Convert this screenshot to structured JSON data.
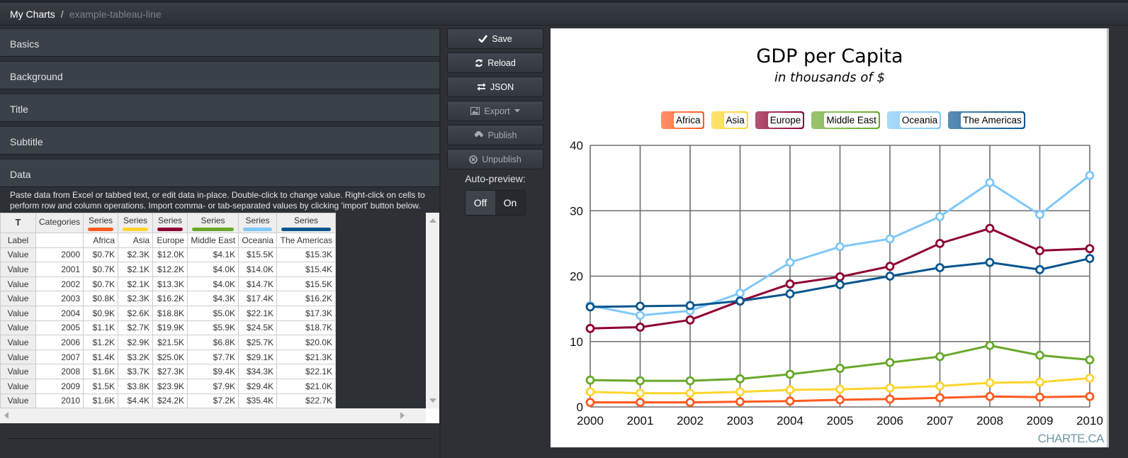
{
  "breadcrumb": {
    "home": "My Charts",
    "separator": "/",
    "current": "example-tableau-line"
  },
  "panels": [
    "Basics",
    "Background",
    "Title",
    "Subtitle",
    "Data"
  ],
  "data_panel": {
    "help": "Paste data from Excel or tabbed text, or edit data in-place. Double-click to change value. Right-click on cells to perform row and column operations. Import comma- or tab-separated values by clicking 'import' button below.",
    "corner": "T",
    "categories_header": "Categories",
    "series_header": "Series",
    "label_row": "Label",
    "value_row": "Value",
    "series": [
      {
        "name": "Africa",
        "color": "#ff5a1f"
      },
      {
        "name": "Asia",
        "color": "#ffd52e"
      },
      {
        "name": "Europe",
        "color": "#8e0033"
      },
      {
        "name": "Middle East",
        "color": "#67a829"
      },
      {
        "name": "Oceania",
        "color": "#7fc8f8"
      },
      {
        "name": "The Americas",
        "color": "#07558f"
      }
    ],
    "rows": [
      [
        "2000",
        "$0.7K",
        "$2.3K",
        "$12.0K",
        "$4.1K",
        "$15.5K",
        "$15.3K"
      ],
      [
        "2001",
        "$0.7K",
        "$2.1K",
        "$12.2K",
        "$4.0K",
        "$14.0K",
        "$15.4K"
      ],
      [
        "2002",
        "$0.7K",
        "$2.1K",
        "$13.3K",
        "$4.0K",
        "$14.7K",
        "$15.5K"
      ],
      [
        "2003",
        "$0.8K",
        "$2.3K",
        "$16.2K",
        "$4.3K",
        "$17.4K",
        "$16.2K"
      ],
      [
        "2004",
        "$0.9K",
        "$2.6K",
        "$18.8K",
        "$5.0K",
        "$22.1K",
        "$17.3K"
      ],
      [
        "2005",
        "$1.1K",
        "$2.7K",
        "$19.9K",
        "$5.9K",
        "$24.5K",
        "$18.7K"
      ],
      [
        "2006",
        "$1.2K",
        "$2.9K",
        "$21.5K",
        "$6.8K",
        "$25.7K",
        "$20.0K"
      ],
      [
        "2007",
        "$1.4K",
        "$3.2K",
        "$25.0K",
        "$7.7K",
        "$29.1K",
        "$21.3K"
      ],
      [
        "2008",
        "$1.6K",
        "$3.7K",
        "$27.3K",
        "$9.4K",
        "$34.3K",
        "$22.1K"
      ],
      [
        "2009",
        "$1.5K",
        "$3.8K",
        "$23.9K",
        "$7.9K",
        "$29.4K",
        "$21.0K"
      ],
      [
        "2010",
        "$1.6K",
        "$4.4K",
        "$24.2K",
        "$7.2K",
        "$35.4K",
        "$22.7K"
      ]
    ]
  },
  "actions": {
    "save": "Save",
    "reload": "Reload",
    "json": "JSON",
    "export": "Export",
    "publish": "Publish",
    "unpublish": "Unpublish",
    "auto_preview_label": "Auto-preview:",
    "auto_preview_off": "Off",
    "auto_preview_on": "On",
    "auto_preview_selected": "Off"
  },
  "preview": {
    "watermark": "CHARTE.CA"
  },
  "chart_data": {
    "type": "line",
    "title": "GDP per Capita",
    "subtitle": "in thousands of $",
    "xlabel": "",
    "ylabel": "",
    "x": [
      2000,
      2001,
      2002,
      2003,
      2004,
      2005,
      2006,
      2007,
      2008,
      2009,
      2010
    ],
    "ylim": [
      0,
      40
    ],
    "yticks": [
      0,
      10,
      20,
      30,
      40
    ],
    "grid": true,
    "legend_position": "top",
    "series": [
      {
        "name": "Africa",
        "color": "#ff5a1f",
        "values": [
          0.7,
          0.7,
          0.7,
          0.8,
          0.9,
          1.1,
          1.2,
          1.4,
          1.6,
          1.5,
          1.6
        ]
      },
      {
        "name": "Asia",
        "color": "#ffd52e",
        "values": [
          2.3,
          2.1,
          2.1,
          2.3,
          2.6,
          2.7,
          2.9,
          3.2,
          3.7,
          3.8,
          4.4
        ]
      },
      {
        "name": "Europe",
        "color": "#8e0033",
        "values": [
          12.0,
          12.2,
          13.3,
          16.2,
          18.8,
          19.9,
          21.5,
          25.0,
          27.3,
          23.9,
          24.2
        ]
      },
      {
        "name": "Middle East",
        "color": "#67a829",
        "values": [
          4.1,
          4.0,
          4.0,
          4.3,
          5.0,
          5.9,
          6.8,
          7.7,
          9.4,
          7.9,
          7.2
        ]
      },
      {
        "name": "Oceania",
        "color": "#7fc8f8",
        "values": [
          15.5,
          14.0,
          14.7,
          17.4,
          22.1,
          24.5,
          25.7,
          29.1,
          34.3,
          29.4,
          35.4
        ]
      },
      {
        "name": "The Americas",
        "color": "#07558f",
        "values": [
          15.3,
          15.4,
          15.5,
          16.2,
          17.3,
          18.7,
          20.0,
          21.3,
          22.1,
          21.0,
          22.7
        ]
      }
    ]
  }
}
